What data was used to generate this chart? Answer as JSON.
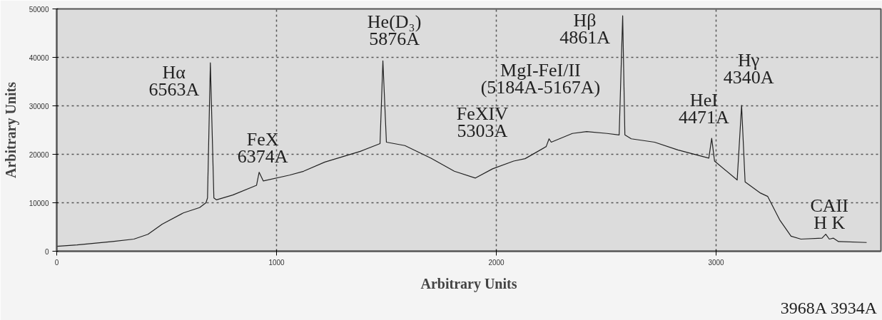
{
  "chart_data": {
    "type": "line",
    "xlabel": "Arbitrary Units",
    "ylabel": "Arbitrary Units",
    "xlim": [
      0,
      3750
    ],
    "ylim": [
      0,
      50000
    ],
    "xticks": [
      0,
      1000,
      2000,
      3000
    ],
    "yticks": [
      0,
      10000,
      20000,
      30000,
      40000,
      50000
    ],
    "grid": true,
    "line_style": "solid",
    "marker": "none",
    "series": [
      {
        "color": "#222222",
        "x": [
          0,
          93,
          254,
          351,
          415,
          480,
          576,
          650,
          679,
          686,
          699,
          715,
          727,
          801,
          909,
          921,
          940,
          1059,
          1123,
          1220,
          1381,
          1471,
          1484,
          1500,
          1584,
          1703,
          1809,
          1905,
          1983,
          2079,
          2131,
          2227,
          2240,
          2250,
          2346,
          2411,
          2504,
          2559,
          2575,
          2585,
          2614,
          2720,
          2826,
          2967,
          2980,
          2993,
          3096,
          3116,
          3132,
          3202,
          3235,
          3289,
          3341,
          3386,
          3482,
          3499,
          3515,
          3534,
          3557,
          3685
        ],
        "values": [
          1000,
          1300,
          2000,
          2500,
          3500,
          5600,
          7900,
          9000,
          10000,
          11000,
          38900,
          11000,
          10600,
          11600,
          13600,
          16300,
          14500,
          15700,
          16500,
          18400,
          20600,
          22200,
          39300,
          22500,
          21800,
          19200,
          16500,
          15100,
          17000,
          18600,
          19100,
          21600,
          23200,
          22500,
          24300,
          24700,
          24300,
          24000,
          48600,
          24000,
          23200,
          22500,
          20900,
          19200,
          23300,
          18600,
          14700,
          30100,
          14300,
          12000,
          11300,
          6500,
          3100,
          2500,
          2700,
          3500,
          2500,
          2700,
          2000,
          1800
        ]
      }
    ],
    "annotations": [
      {
        "text": "Hα\n6563A",
        "x": 699,
        "y": 38900
      },
      {
        "text": "FeX\n6374A",
        "x": 921,
        "y": 16300
      },
      {
        "text": "He(D₃)\n5876A",
        "x": 1484,
        "y": 39300
      },
      {
        "text": "FeXIV\n5303A",
        "x": 2131,
        "y": 19100
      },
      {
        "text": "MgI-FeI/II\n(5184A-5167A)",
        "x": 2240,
        "y": 23200
      },
      {
        "text": "Hβ\n4861A",
        "x": 2575,
        "y": 48600
      },
      {
        "text": "HeI\n4471A",
        "x": 2980,
        "y": 23300
      },
      {
        "text": "Hγ\n4340A",
        "x": 3116,
        "y": 30100
      },
      {
        "text": "CAII\nH K",
        "x": 3499,
        "y": 3500
      },
      "3968A 3934A"
    ]
  }
}
